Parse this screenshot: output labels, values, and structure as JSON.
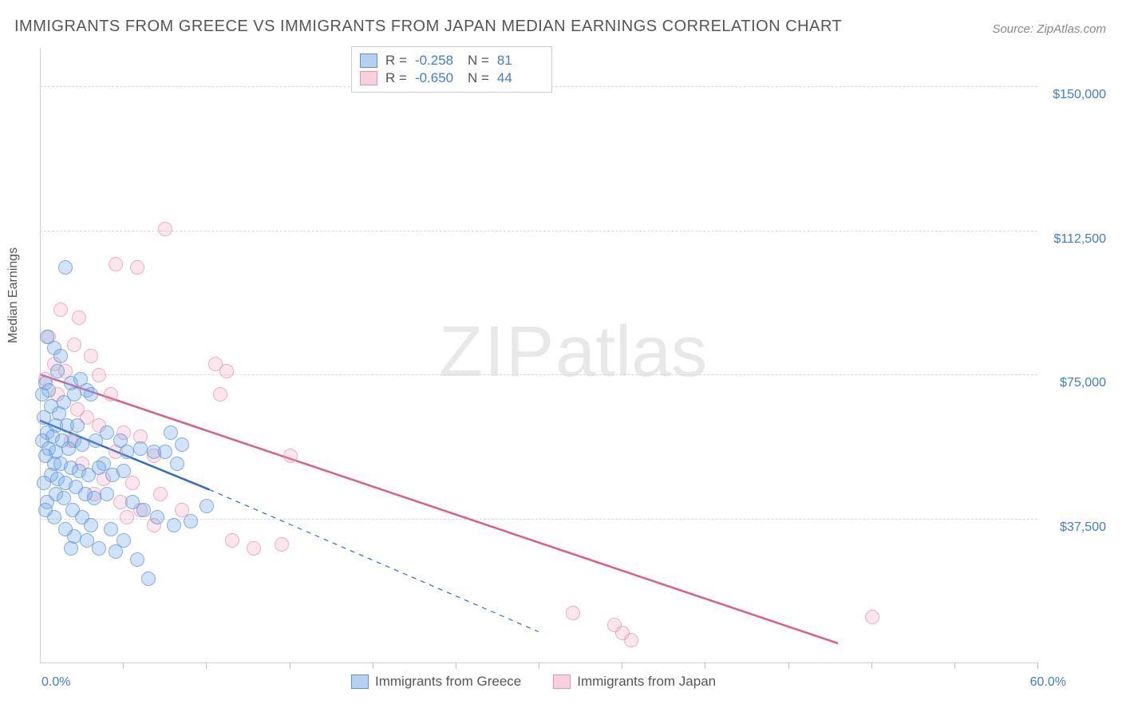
{
  "title": "IMMIGRANTS FROM GREECE VS IMMIGRANTS FROM JAPAN MEDIAN EARNINGS CORRELATION CHART",
  "source": "Source: ZipAtlas.com",
  "ylabel": "Median Earnings",
  "watermark_zip": "ZIP",
  "watermark_atlas": "atlas",
  "chart": {
    "type": "scatter",
    "xlim": [
      0,
      60
    ],
    "ylim": [
      0,
      160000
    ],
    "x_unit": "%",
    "y_unit": "$",
    "background_color": "#ffffff",
    "grid_color": "#d8d8d8",
    "yticks": [
      {
        "value": 37500,
        "label": "$37,500"
      },
      {
        "value": 75000,
        "label": "$75,000"
      },
      {
        "value": 112500,
        "label": "$112,500"
      },
      {
        "value": 150000,
        "label": "$150,000"
      }
    ],
    "xticks_left": {
      "value": 0,
      "label": "0.0%"
    },
    "xticks_right": {
      "value": 60,
      "label": "60.0%"
    },
    "xtick_marks": [
      5,
      10,
      15,
      20,
      25,
      30,
      35,
      40,
      45,
      50,
      55,
      60
    ]
  },
  "series_a": {
    "name": "Immigrants from Greece",
    "marker_fill": "rgba(120,170,230,0.45)",
    "marker_stroke": "#5b93d6",
    "line_color": "#2e6bc7",
    "line_width": 2.5,
    "R": "-0.258",
    "N": "81",
    "trend": {
      "x1": 0,
      "y1": 63000,
      "x2": 10.2,
      "y2": 45000,
      "dash_to_x": 30,
      "dash_to_y": 8000
    },
    "points": [
      [
        1.5,
        103000
      ],
      [
        0.4,
        85000
      ],
      [
        0.8,
        82000
      ],
      [
        1.2,
        80000
      ],
      [
        1.0,
        76000
      ],
      [
        0.3,
        73000
      ],
      [
        1.8,
        73000
      ],
      [
        2.4,
        74000
      ],
      [
        0.5,
        71000
      ],
      [
        0.1,
        70000
      ],
      [
        1.4,
        68000
      ],
      [
        2.0,
        70000
      ],
      [
        2.8,
        71000
      ],
      [
        3.0,
        70000
      ],
      [
        0.6,
        67000
      ],
      [
        1.1,
        65000
      ],
      [
        0.2,
        64000
      ],
      [
        0.9,
        62000
      ],
      [
        1.6,
        62000
      ],
      [
        2.2,
        62000
      ],
      [
        0.4,
        60000
      ],
      [
        0.7,
        59000
      ],
      [
        1.3,
        58000
      ],
      [
        2.0,
        58000
      ],
      [
        0.1,
        58000
      ],
      [
        0.5,
        56000
      ],
      [
        0.9,
        55000
      ],
      [
        1.7,
        56000
      ],
      [
        2.5,
        57000
      ],
      [
        3.3,
        58000
      ],
      [
        4.0,
        60000
      ],
      [
        4.8,
        58000
      ],
      [
        5.2,
        55000
      ],
      [
        6.0,
        56000
      ],
      [
        6.8,
        55000
      ],
      [
        3.8,
        52000
      ],
      [
        0.3,
        54000
      ],
      [
        0.8,
        52000
      ],
      [
        1.2,
        52000
      ],
      [
        1.8,
        51000
      ],
      [
        2.3,
        50000
      ],
      [
        2.9,
        49000
      ],
      [
        3.5,
        51000
      ],
      [
        4.3,
        49000
      ],
      [
        5.0,
        50000
      ],
      [
        0.6,
        49000
      ],
      [
        1.0,
        48000
      ],
      [
        1.5,
        47000
      ],
      [
        2.1,
        46000
      ],
      [
        0.2,
        47000
      ],
      [
        2.7,
        44000
      ],
      [
        3.2,
        43000
      ],
      [
        4.0,
        44000
      ],
      [
        0.9,
        44000
      ],
      [
        1.4,
        43000
      ],
      [
        0.4,
        42000
      ],
      [
        1.9,
        40000
      ],
      [
        2.5,
        38000
      ],
      [
        5.5,
        42000
      ],
      [
        6.2,
        40000
      ],
      [
        7.0,
        38000
      ],
      [
        8.0,
        36000
      ],
      [
        9.0,
        37000
      ],
      [
        10.0,
        41000
      ],
      [
        3.0,
        36000
      ],
      [
        4.2,
        35000
      ],
      [
        5.0,
        32000
      ],
      [
        2.0,
        33000
      ],
      [
        2.8,
        32000
      ],
      [
        1.5,
        35000
      ],
      [
        3.5,
        30000
      ],
      [
        4.5,
        29000
      ],
      [
        5.8,
        27000
      ],
      [
        6.5,
        22000
      ],
      [
        1.8,
        30000
      ],
      [
        0.8,
        38000
      ],
      [
        0.3,
        40000
      ],
      [
        7.5,
        55000
      ],
      [
        8.2,
        52000
      ],
      [
        7.8,
        60000
      ],
      [
        8.5,
        57000
      ]
    ]
  },
  "series_b": {
    "name": "Immigrants from Japan",
    "marker_fill": "rgba(240,160,190,0.35)",
    "marker_stroke": "#e892b0",
    "line_color": "#e15b87",
    "line_width": 2.5,
    "R": "-0.650",
    "N": "44",
    "trend": {
      "x1": 0,
      "y1": 75000,
      "x2": 48,
      "y2": 5000
    },
    "points": [
      [
        7.5,
        113000
      ],
      [
        4.5,
        104000
      ],
      [
        5.8,
        103000
      ],
      [
        1.2,
        92000
      ],
      [
        2.3,
        90000
      ],
      [
        0.5,
        85000
      ],
      [
        2.0,
        83000
      ],
      [
        3.0,
        80000
      ],
      [
        0.8,
        78000
      ],
      [
        1.5,
        76000
      ],
      [
        0.3,
        74000
      ],
      [
        3.5,
        75000
      ],
      [
        4.2,
        70000
      ],
      [
        1.0,
        70000
      ],
      [
        10.5,
        78000
      ],
      [
        11.2,
        76000
      ],
      [
        2.2,
        66000
      ],
      [
        2.8,
        64000
      ],
      [
        3.5,
        62000
      ],
      [
        5.0,
        60000
      ],
      [
        6.0,
        59000
      ],
      [
        1.8,
        58000
      ],
      [
        10.8,
        70000
      ],
      [
        4.5,
        55000
      ],
      [
        6.8,
        54000
      ],
      [
        2.5,
        52000
      ],
      [
        3.8,
        48000
      ],
      [
        5.5,
        47000
      ],
      [
        15.0,
        54000
      ],
      [
        7.2,
        44000
      ],
      [
        4.8,
        42000
      ],
      [
        6.0,
        40000
      ],
      [
        8.5,
        40000
      ],
      [
        3.2,
        44000
      ],
      [
        5.2,
        38000
      ],
      [
        6.8,
        36000
      ],
      [
        11.5,
        32000
      ],
      [
        12.8,
        30000
      ],
      [
        14.5,
        31000
      ],
      [
        32.0,
        13000
      ],
      [
        35.0,
        8000
      ],
      [
        34.5,
        10000
      ],
      [
        50.0,
        12000
      ],
      [
        35.5,
        6000
      ]
    ]
  },
  "stats_labels": {
    "R": "R =",
    "N": "N ="
  },
  "legend": {
    "a": "Immigrants from Greece",
    "b": "Immigrants from Japan"
  }
}
